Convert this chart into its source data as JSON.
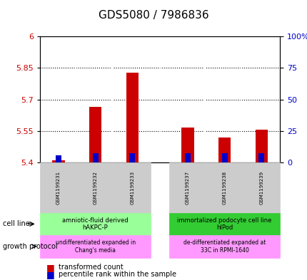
{
  "title": "GDS5080 / 7986836",
  "samples": [
    "GSM1199231",
    "GSM1199232",
    "GSM1199233",
    "GSM1199237",
    "GSM1199238",
    "GSM1199239"
  ],
  "red_values": [
    5.41,
    5.665,
    5.828,
    5.565,
    5.52,
    5.555
  ],
  "blue_values": [
    5.435,
    5.445,
    5.445,
    5.445,
    5.445,
    5.445
  ],
  "ylim_left": [
    5.4,
    6.0
  ],
  "ylim_right": [
    0,
    100
  ],
  "yticks_left": [
    5.4,
    5.55,
    5.7,
    5.85,
    6.0
  ],
  "yticks_right": [
    0,
    25,
    50,
    75,
    100
  ],
  "ytick_labels_left": [
    "5.4",
    "5.55",
    "5.7",
    "5.85",
    "6"
  ],
  "ytick_labels_right": [
    "0",
    "25",
    "50",
    "75",
    "100%"
  ],
  "bar_width": 0.35,
  "red_color": "#cc0000",
  "blue_color": "#0000cc",
  "group1_indices": [
    0,
    1,
    2
  ],
  "group2_indices": [
    3,
    4,
    5
  ],
  "cell_line_1": "amniotic-fluid derived\nhAKPC-P",
  "cell_line_2": "immortalized podocyte cell line\nhIPod",
  "growth_1": "undifferentiated expanded in\nChang's media",
  "growth_2": "de-differentiated expanded at\n33C in RPMI-1640",
  "cell_line_color_1": "#99ff99",
  "cell_line_color_2": "#33cc33",
  "growth_color_1": "#ff99ff",
  "growth_color_2": "#ff99ff",
  "sample_label_color": "#888888",
  "background_color": "#ffffff"
}
